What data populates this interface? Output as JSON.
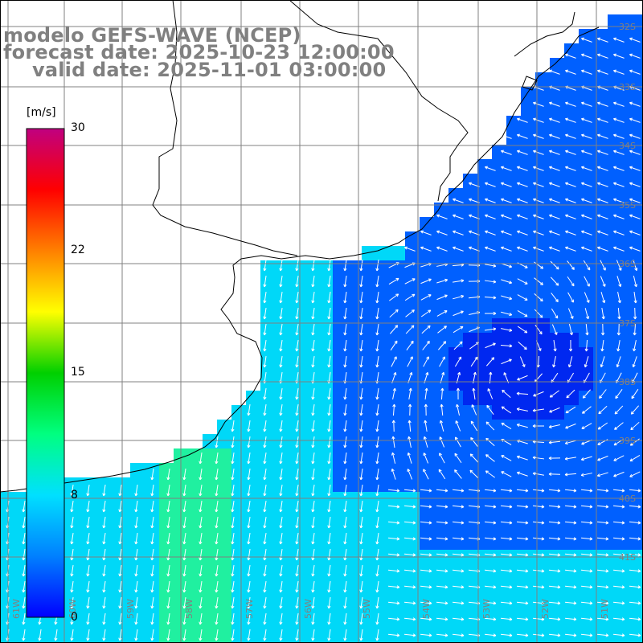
{
  "title": {
    "line1": "modelo GEFS-WAVE (NCEP)",
    "line2": "forecast date: 2025-10-23 12:00:00",
    "line3": "valid date: 2025-11-01 03:00:00"
  },
  "colorbar": {
    "unit": "[m/s]",
    "ticks": [
      "30",
      "22",
      "15",
      "8",
      "0"
    ],
    "colors": [
      "#0000ff",
      "#0080ff",
      "#00e0ff",
      "#00ff80",
      "#00d000",
      "#ffff00",
      "#ff8000",
      "#ff0000",
      "#c00080"
    ]
  },
  "map": {
    "lat_labels": [
      "32S",
      "33S",
      "34S",
      "35S",
      "36S",
      "37S",
      "38S",
      "39S",
      "40S",
      "41S"
    ],
    "lon_labels": [
      "61W",
      "60W",
      "59W",
      "58W",
      "57W",
      "56W",
      "55W",
      "54W",
      "53W",
      "52W",
      "51W"
    ],
    "colors": {
      "land": "#ffffff",
      "coast": "#000000",
      "grid": "#808080",
      "deep_blue": "#0028f0",
      "mid_blue": "#0060ff",
      "cyan": "#00d8f8",
      "green_cyan": "#20f0a0",
      "arrow": "#ffffff"
    }
  }
}
